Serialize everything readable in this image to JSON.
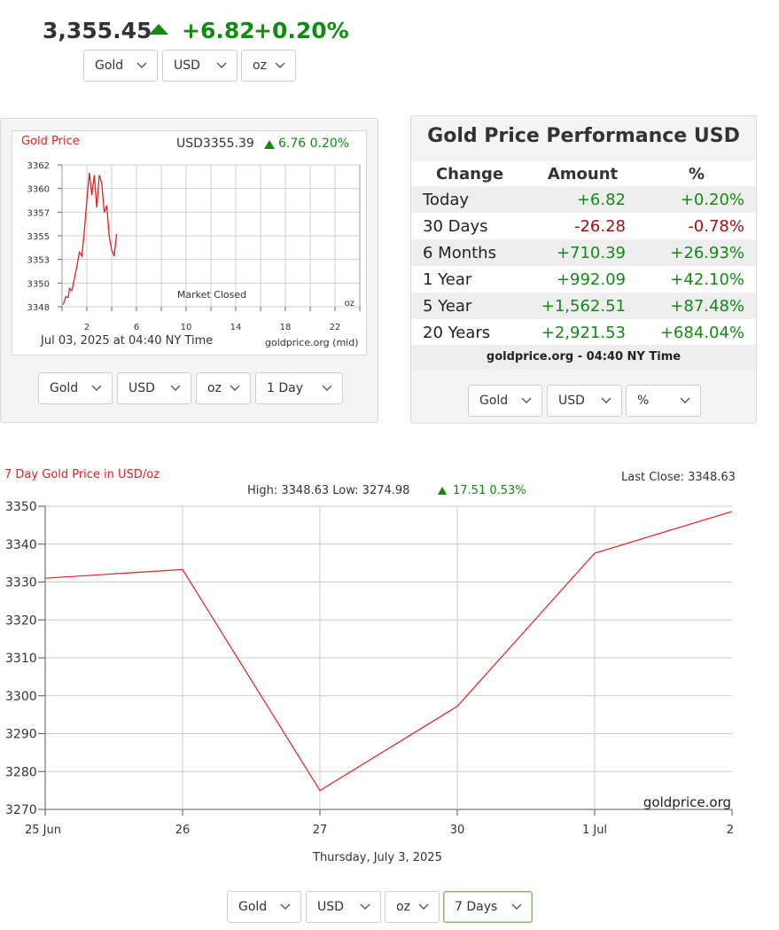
{
  "quote": {
    "price": "3,355.45",
    "change": "+6.82",
    "change_pct": "+0.20%",
    "direction_icon": "triangle-up-icon",
    "selectors": [
      "Gold",
      "USD",
      "oz"
    ]
  },
  "day_chart": {
    "title": "Gold Price",
    "price": "USD3355.39",
    "change": "6.76 0.20%",
    "date_label": "Jul 03, 2025 at 04:40 NY Time",
    "source": "goldprice.org (mid)",
    "status": "Market Closed",
    "unit": "oz",
    "selectors": [
      "Gold",
      "USD",
      "oz",
      "1 Day"
    ]
  },
  "performance": {
    "title": "Gold Price Performance USD",
    "headers": [
      "Change",
      "Amount",
      "%"
    ],
    "rows": [
      {
        "period": "Today",
        "amount": "+6.82",
        "pct": "+0.20%",
        "sign": "pos"
      },
      {
        "period": "30 Days",
        "amount": "-26.28",
        "pct": "-0.78%",
        "sign": "neg"
      },
      {
        "period": "6 Months",
        "amount": "+710.39",
        "pct": "+26.93%",
        "sign": "pos"
      },
      {
        "period": "1 Year",
        "amount": "+992.09",
        "pct": "+42.10%",
        "sign": "pos"
      },
      {
        "period": "5 Year",
        "amount": "+1,562.51",
        "pct": "+87.48%",
        "sign": "pos"
      },
      {
        "period": "20 Years",
        "amount": "+2,921.53",
        "pct": "+684.04%",
        "sign": "pos"
      }
    ],
    "footer": "goldprice.org - 04:40 NY Time",
    "selectors": [
      "Gold",
      "USD",
      "%"
    ]
  },
  "week_chart": {
    "title": "7 Day Gold Price in USD/oz",
    "last_close": "Last Close: 3348.63",
    "high_low": "High: 3348.63 Low: 3274.98",
    "change": "17.51 0.53%",
    "watermark": "goldprice.org",
    "caption": "Thursday, July 3, 2025",
    "selectors": [
      "Gold",
      "USD",
      "oz",
      "7 Days"
    ]
  },
  "colors": {
    "up": "#138a13",
    "down": "#a01010",
    "line": "#e22020",
    "grid": "#cccccc"
  },
  "chart_data": [
    {
      "type": "line",
      "title": "Gold Price",
      "xlabel": "",
      "ylabel": "",
      "ylim": [
        3348,
        3362
      ],
      "yticks": [
        "3362",
        "3360",
        "3357",
        "3355",
        "3353",
        "3350",
        "3348"
      ],
      "xticks": [
        "2",
        "6",
        "10",
        "14",
        "18",
        "22"
      ],
      "xlim": [
        0,
        24
      ],
      "grid": true,
      "x": [
        0.1,
        0.3,
        0.5,
        0.6,
        0.8,
        1.0,
        1.2,
        1.4,
        1.6,
        1.8,
        2.0,
        2.2,
        2.4,
        2.6,
        2.8,
        3.0,
        3.2,
        3.4,
        3.6,
        3.8,
        4.0,
        4.2,
        4.4
      ],
      "y": [
        3348.2,
        3349.0,
        3348.9,
        3349.8,
        3349.6,
        3350.8,
        3352.0,
        3353.4,
        3353.0,
        3355.5,
        3358.5,
        3361.2,
        3359.0,
        3361.0,
        3357.8,
        3361.0,
        3360.2,
        3357.3,
        3358.0,
        3355.0,
        3353.6,
        3353.0,
        3355.2
      ]
    },
    {
      "type": "line",
      "title": "7 Day Gold Price in USD/oz",
      "xlabel": "Thursday, July 3, 2025",
      "ylabel": "",
      "categories": [
        "25 Jun",
        "26",
        "27",
        "30",
        "1 Jul",
        "2"
      ],
      "values": [
        3331.0,
        3333.3,
        3274.98,
        3297.2,
        3337.6,
        3348.63
      ],
      "ylim": [
        3270,
        3350
      ],
      "yticks": [
        "3350",
        "3340",
        "3330",
        "3320",
        "3310",
        "3300",
        "3290",
        "3280",
        "3270"
      ],
      "grid": true
    }
  ]
}
